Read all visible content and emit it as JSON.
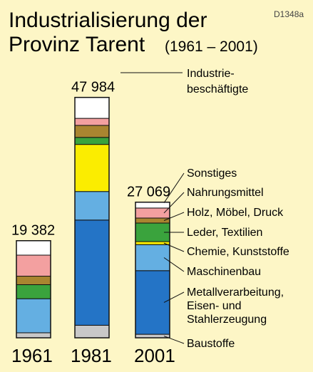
{
  "chart_data": {
    "type": "bar",
    "stacked": true,
    "title_line1": "Industrialisierung der",
    "title_line2": "Provinz Tarent",
    "title_period": "(1961 – 2001)",
    "code": "D1348a",
    "unit_label_line1": "Industrie-",
    "unit_label_line2": "beschäftigte",
    "categories": [
      "1961",
      "1981",
      "2001"
    ],
    "totals": [
      19382,
      47984,
      27069
    ],
    "total_labels": [
      "19 382",
      "47 984",
      "27 069"
    ],
    "series": [
      {
        "name": "Baustoffe",
        "color": "#c8c8c8",
        "values": [
          1000,
          2500,
          700
        ]
      },
      {
        "name": "Metallverarbeitung, Eisen- und Stahlerzeugung",
        "color": "#2474c6",
        "values": [
          0,
          21000,
          12700
        ]
      },
      {
        "name": "Maschinenbau",
        "color": "#64afe2",
        "values": [
          6800,
          5700,
          5200
        ]
      },
      {
        "name": "Chemie, Kunststoffe",
        "color": "#fbed00",
        "values": [
          0,
          9400,
          600
        ]
      },
      {
        "name": "Leder, Textilien",
        "color": "#3aa33d",
        "values": [
          2800,
          1400,
          3700
        ]
      },
      {
        "name": "Holz, Möbel, Druck",
        "color": "#a98530",
        "values": [
          1700,
          2400,
          1000
        ]
      },
      {
        "name": "Nahrungsmittel",
        "color": "#f3a0a0",
        "values": [
          4200,
          1400,
          2000
        ]
      },
      {
        "name": "Sonstiges",
        "color": "#ffffff",
        "values": [
          2882,
          4184,
          1169
        ]
      }
    ],
    "legend": [
      {
        "series": "Sonstiges",
        "lines": [
          "Sonstiges"
        ]
      },
      {
        "series": "Nahrungsmittel",
        "lines": [
          "Nahrungsmittel"
        ]
      },
      {
        "series": "Holz, Möbel, Druck",
        "lines": [
          "Holz, Möbel, Druck"
        ]
      },
      {
        "series": "Leder, Textilien",
        "lines": [
          "Leder, Textilien"
        ]
      },
      {
        "series": "Chemie, Kunststoffe",
        "lines": [
          "Chemie, Kunststoffe"
        ]
      },
      {
        "series": "Maschinenbau",
        "lines": [
          "Maschinenbau"
        ]
      },
      {
        "series": "Metallverarbeitung, Eisen- und Stahlerzeugung",
        "lines": [
          "Metallverarbeitung,",
          "Eisen- und",
          "Stahlerzeugung"
        ]
      },
      {
        "series": "Baustoffe",
        "lines": [
          "Baustoffe"
        ]
      }
    ],
    "legend_placement": "right"
  }
}
